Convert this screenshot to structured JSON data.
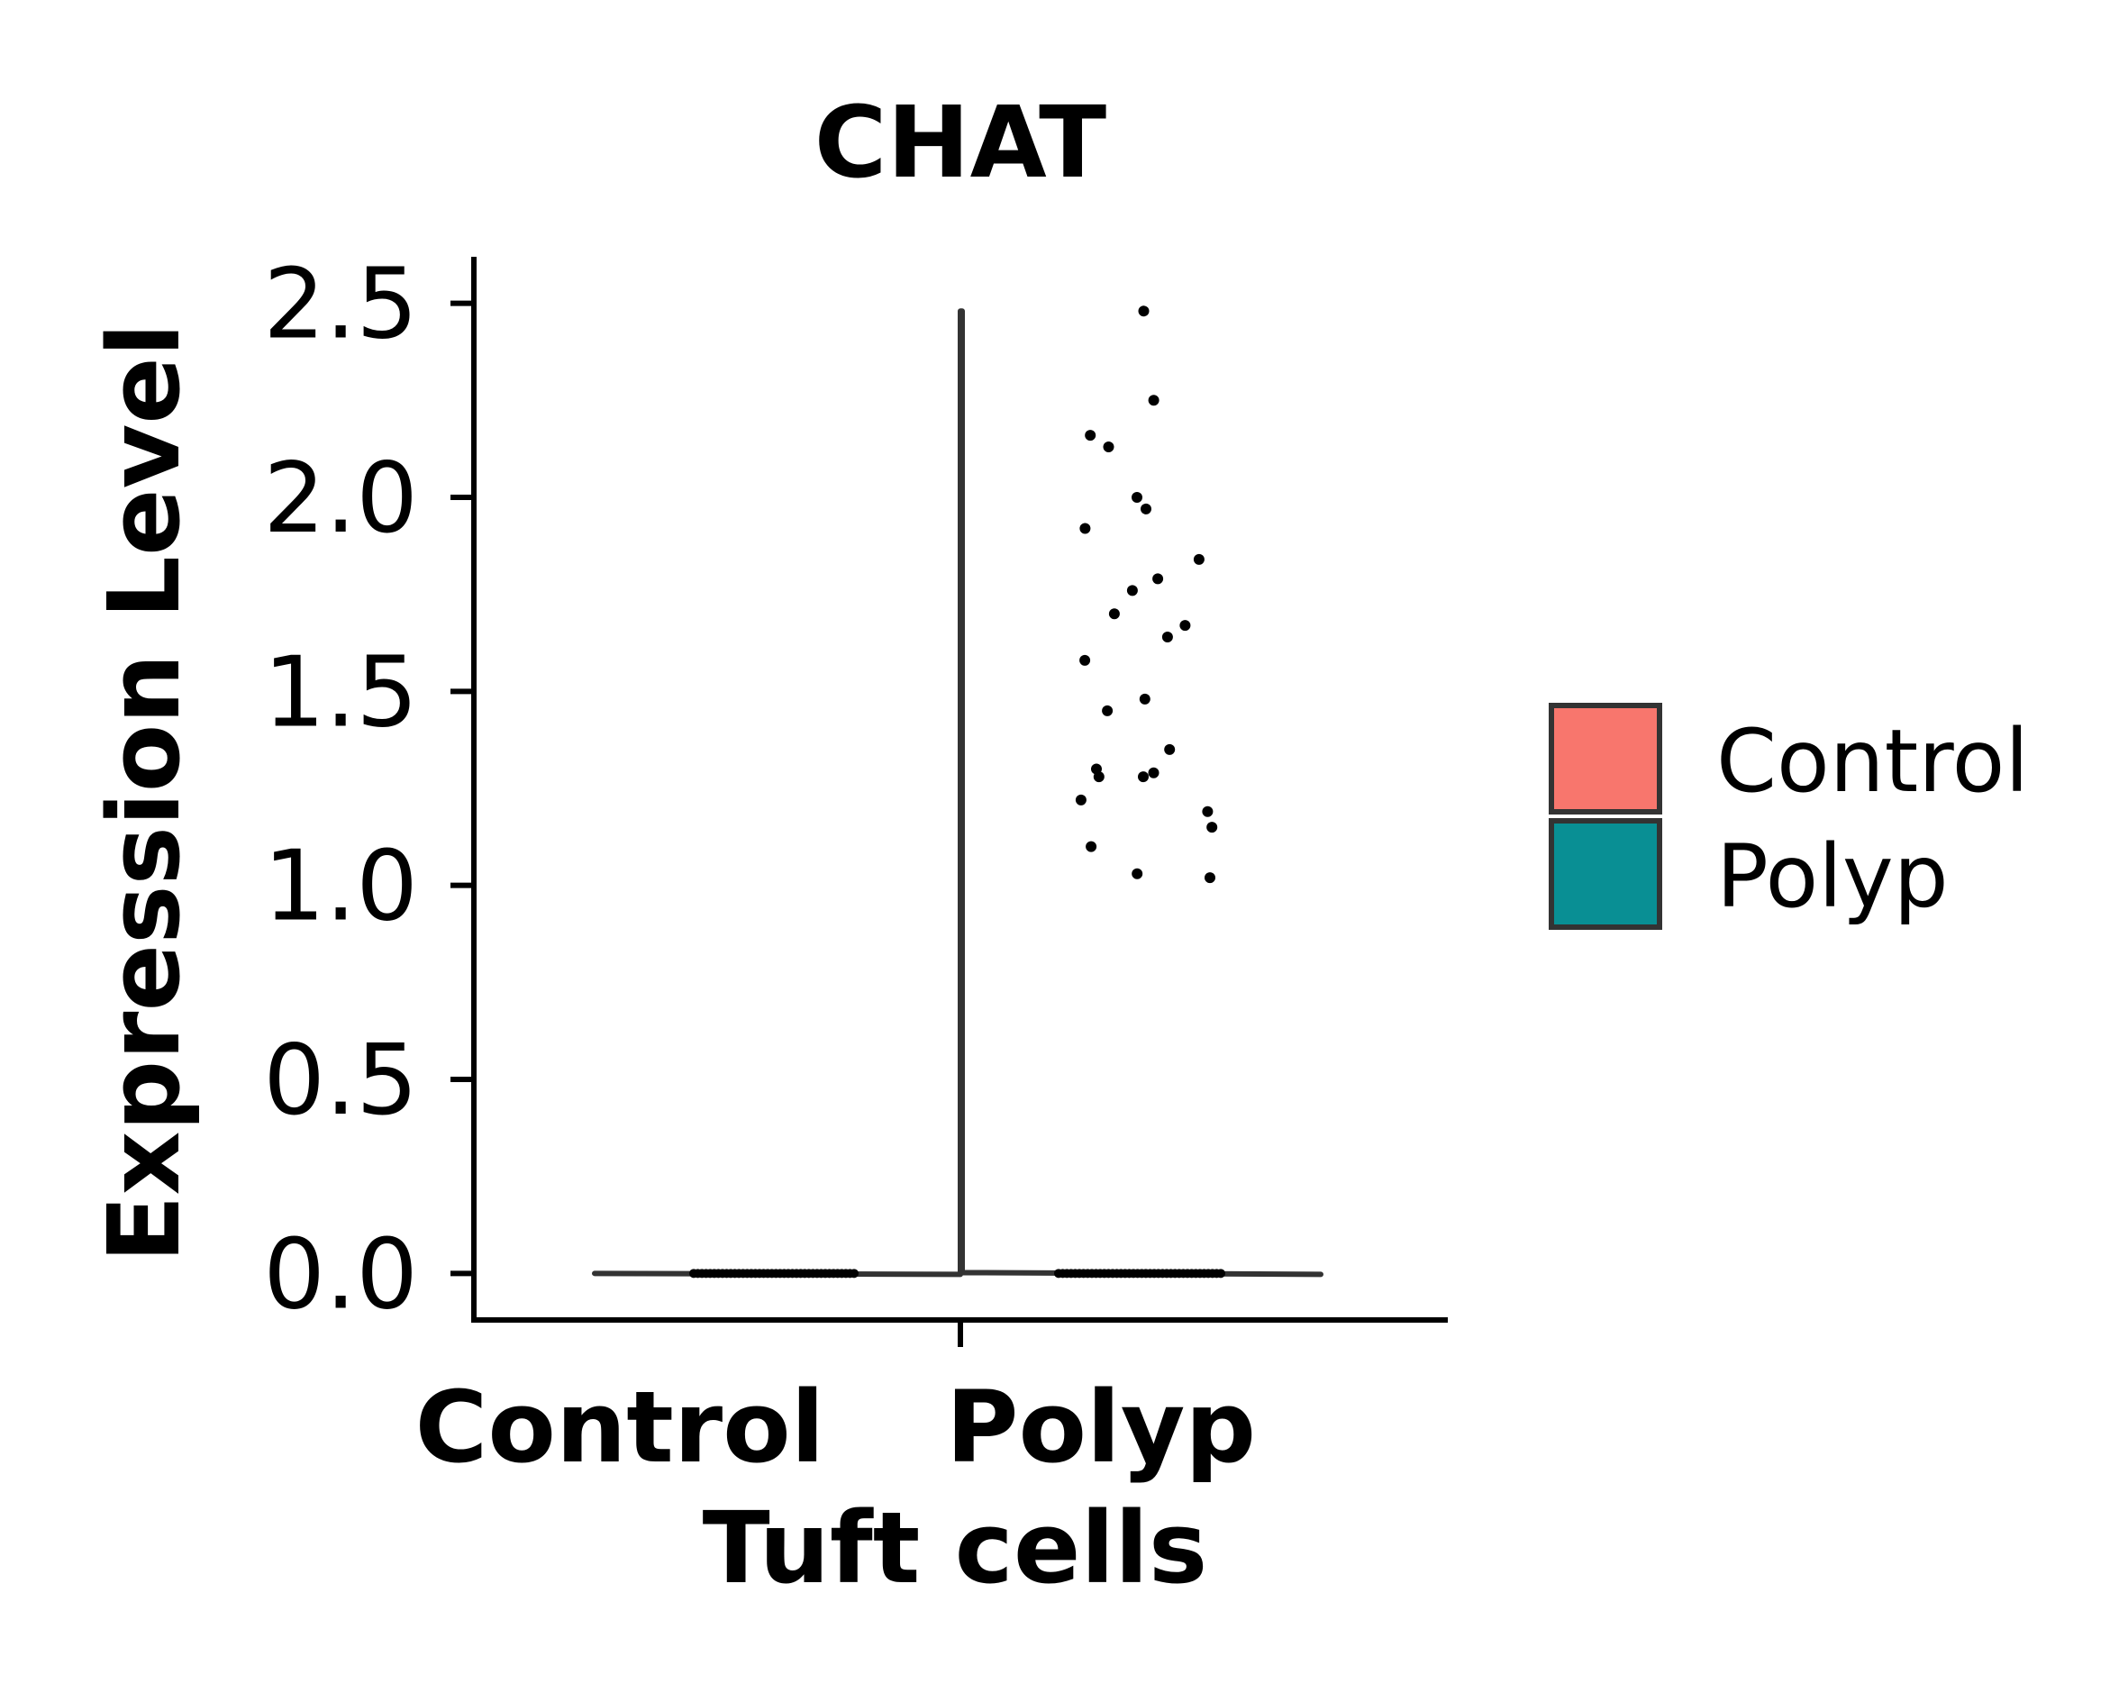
{
  "chart_data": {
    "type": "violin",
    "title": "CHAT",
    "xlabel": "Tuft cells",
    "ylabel": "Expression Level",
    "categories": [
      "Control",
      "Polyp"
    ],
    "ylim": [
      -0.12,
      2.62
    ],
    "yticks": [
      "0.0",
      "0.5",
      "1.0",
      "1.5",
      "2.0",
      "2.5"
    ],
    "ytick_values": [
      0.0,
      0.5,
      1.0,
      1.5,
      2.0,
      2.5
    ],
    "legend": {
      "position": "right",
      "entries": [
        {
          "label": "Control",
          "color": "#F8766D"
        },
        {
          "label": "Polyp",
          "color": "#098F94"
        }
      ]
    },
    "series": [
      {
        "name": "Control",
        "color": "#F8766D",
        "violin_range": [
          0.0,
          0.0
        ],
        "points_at_zero": 40,
        "points": []
      },
      {
        "name": "Polyp",
        "color": "#098F94",
        "violin_range": [
          0.0,
          2.48
        ],
        "points_at_zero": 40,
        "points": [
          2.48,
          2.25,
          2.16,
          2.13,
          2.0,
          1.97,
          1.92,
          1.84,
          1.79,
          1.76,
          1.7,
          1.67,
          1.64,
          1.58,
          1.48,
          1.45,
          1.35,
          1.3,
          1.29,
          1.28,
          1.28,
          1.22,
          1.19,
          1.15,
          1.1,
          1.03,
          1.02
        ]
      }
    ],
    "grid": false
  }
}
